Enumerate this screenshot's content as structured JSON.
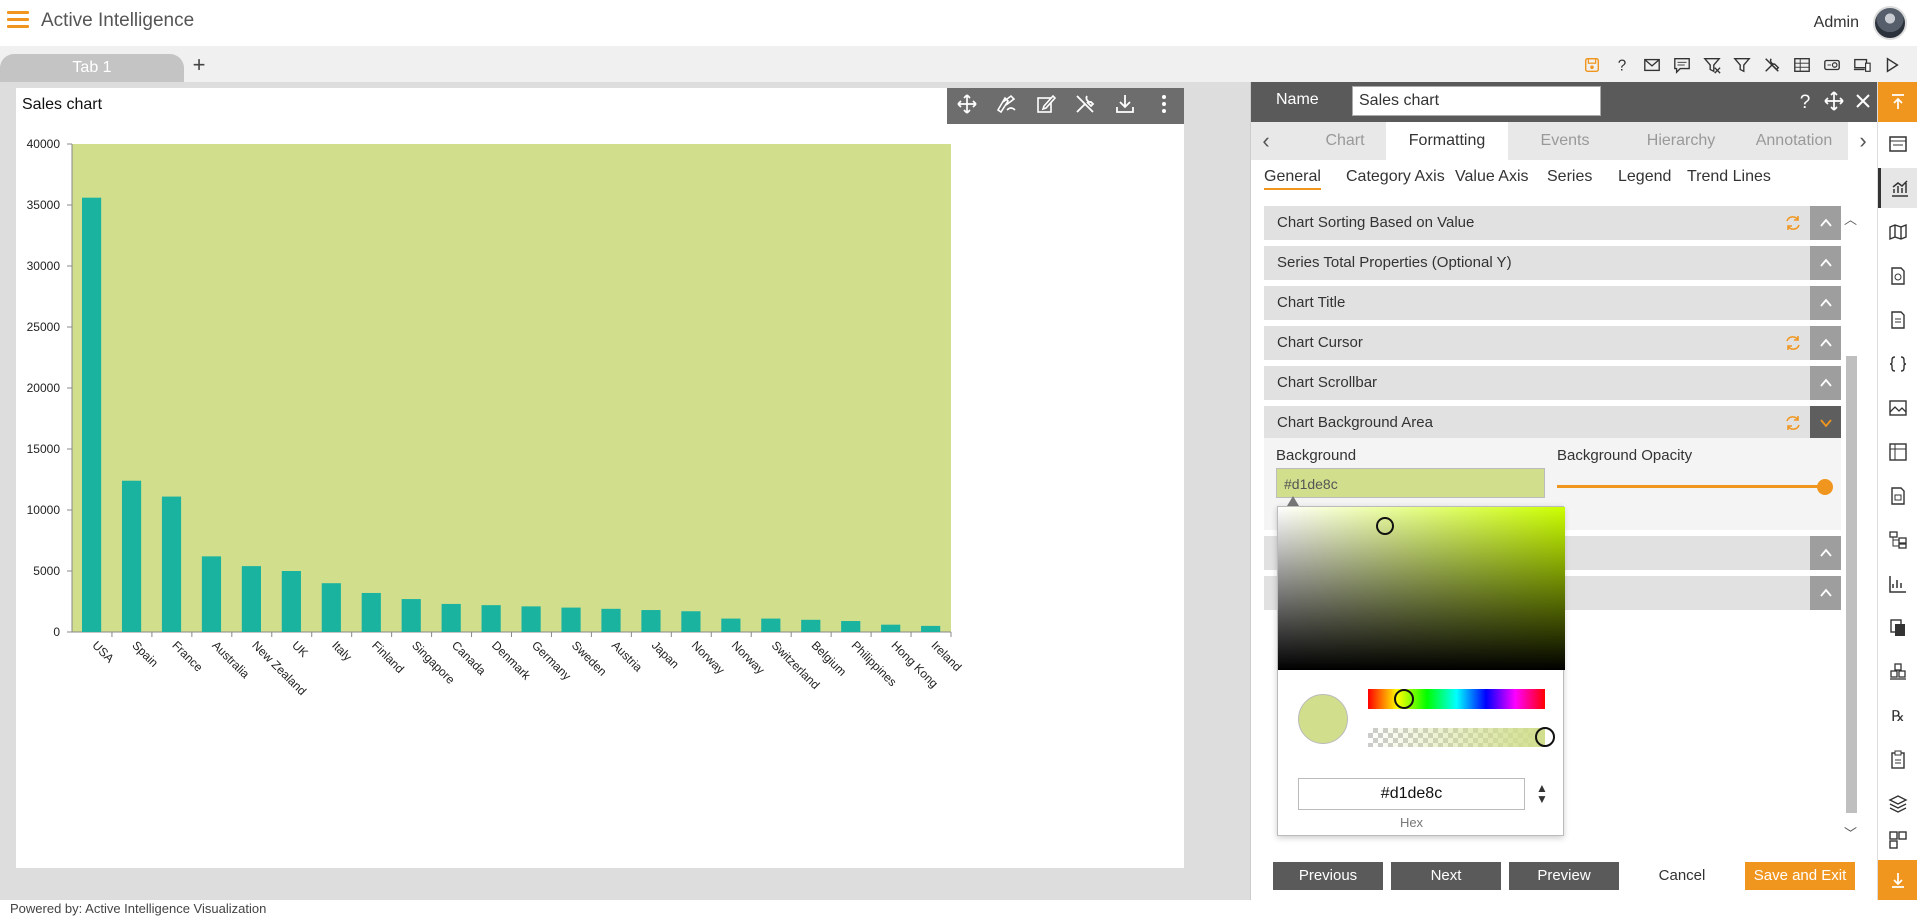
{
  "app": {
    "title": "Active Intelligence",
    "user": "Admin"
  },
  "tabs": [
    {
      "label": "Tab 1"
    }
  ],
  "tab_add": "+",
  "toolbar_icons": [
    "save-icon",
    "help-icon",
    "mail-icon",
    "comment-icon",
    "clear-filter-icon",
    "filter-icon",
    "settings-tools-icon",
    "table-icon",
    "projector-icon",
    "devices-icon",
    "play-icon"
  ],
  "widget": {
    "title": "Sales chart",
    "tools": [
      "move-icon",
      "draw-icon",
      "edit-icon",
      "tools-icon",
      "download-icon",
      "more-vertical-icon"
    ]
  },
  "chart_data": {
    "type": "bar",
    "title": "Sales chart",
    "categories": [
      "USA",
      "Spain",
      "France",
      "Australia",
      "New Zealand",
      "UK",
      "Italy",
      "Finland",
      "Singapore",
      "Canada",
      "Denmark",
      "Germany",
      "Sweden",
      "Austria",
      "Japan",
      "Norway",
      "Norway",
      "Switzerland",
      "Belgium",
      "Philippines",
      "Hong Kong",
      "Ireland"
    ],
    "values": [
      35600,
      12400,
      11100,
      6200,
      5400,
      5000,
      4000,
      3200,
      2700,
      2300,
      2200,
      2100,
      2000,
      1900,
      1800,
      1700,
      1100,
      1100,
      1000,
      900,
      600,
      500
    ],
    "ylim": [
      0,
      40000
    ],
    "yticks": [
      "0",
      "5000",
      "10000",
      "15000",
      "20000",
      "25000",
      "30000",
      "35000",
      "40000"
    ],
    "bar_color": "#1ab39f",
    "plot_background": "#d1de8c",
    "grid": false
  },
  "panel": {
    "name_label": "Name",
    "name_value": "Sales chart",
    "main_tabs": [
      "Chart",
      "Formatting",
      "Events",
      "Hierarchy",
      "Annotation"
    ],
    "active_main_tab": "Formatting",
    "sub_tabs": [
      "General",
      "Category Axis",
      "Value Axis",
      "Series",
      "Legend",
      "Trend Lines"
    ],
    "active_sub_tab": "General",
    "sections": [
      {
        "label": "Chart Sorting Based on Value",
        "refresh": true
      },
      {
        "label": "Series Total Properties (Optional Y)",
        "refresh": false
      },
      {
        "label": "Chart Title",
        "refresh": false
      },
      {
        "label": "Chart Cursor",
        "refresh": true
      },
      {
        "label": "Chart Scrollbar",
        "refresh": false
      },
      {
        "label": "Chart Background Area",
        "refresh": true,
        "open": true
      }
    ],
    "background_label": "Background",
    "background_value": "#d1de8c",
    "opacity_label": "Background Opacity",
    "opacity_value": 1.0,
    "picker": {
      "hex": "#d1de8c",
      "hex_label": "Hex"
    },
    "footer": {
      "previous": "Previous",
      "next": "Next",
      "preview": "Preview",
      "cancel": "Cancel",
      "save": "Save and Exit"
    }
  },
  "right_sidebar": [
    "collapse-up-icon",
    "form-icon",
    "chart-icon",
    "map-icon",
    "report-icon",
    "document-icon",
    "code-icon",
    "image-icon",
    "grid-icon",
    "page-icon",
    "tree-icon",
    "analytics-icon",
    "copy-icon",
    "cubes-icon",
    "rx-icon",
    "clipboard-icon",
    "layers-icon",
    "dashboard-icon",
    "download-arrow-icon"
  ],
  "footer_text": "Powered by: Active Intelligence Visualization",
  "colors": {
    "accent": "#f0961e",
    "header_dark": "#5a5a5a"
  }
}
